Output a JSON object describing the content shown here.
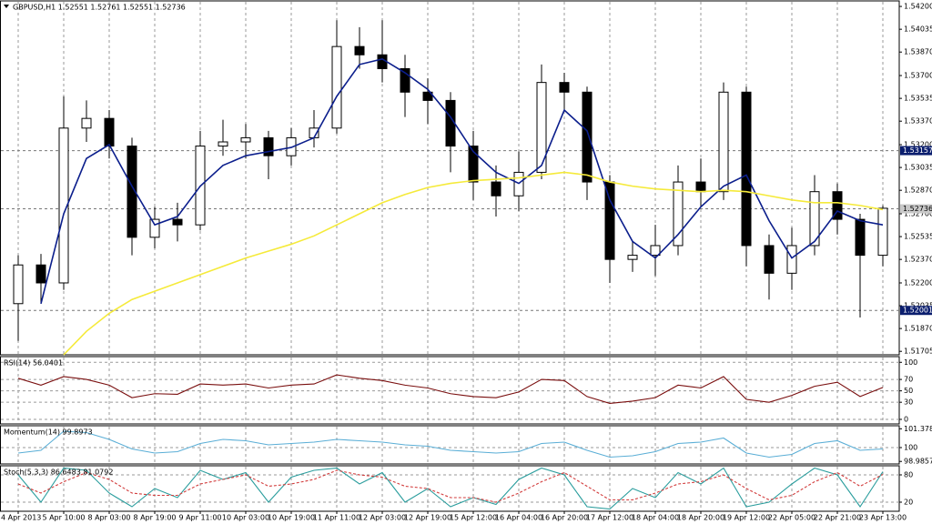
{
  "chart_data": [
    {
      "type": "candlestick",
      "title": "GBPUSD,H1  1.52551 1.52761 1.52551 1.52736",
      "categories": [
        "4 Apr 2013",
        null,
        "5 Apr 10:00",
        null,
        "8 Apr 03:00",
        null,
        "8 Apr 19:00",
        null,
        "9 Apr 11:00",
        null,
        "10 Apr 03:00",
        null,
        "10 Apr 19:00",
        null,
        "11 Apr 11:00",
        null,
        "12 Apr 03:00",
        null,
        "12 Apr 19:00",
        null,
        "15 Apr 12:00",
        null,
        "16 Apr 04:00",
        null,
        "16 Apr 20:00",
        null,
        "17 Apr 12:00",
        null,
        "18 Apr 04:00",
        null,
        "18 Apr 20:00",
        null,
        "19 Apr 12:00",
        null,
        "22 Apr 05:00",
        null,
        "22 Apr 21:00",
        null,
        "23 Apr 13:00"
      ],
      "open": [
        1.5205,
        1.5233,
        1.522,
        1.5332,
        1.5339,
        1.5319,
        1.5253,
        1.5266,
        1.5262,
        1.5319,
        1.5322,
        1.5325,
        1.5312,
        1.5325,
        1.5332,
        1.5391,
        1.5385,
        1.5375,
        1.5358,
        1.5352,
        1.5319,
        1.5293,
        1.5283,
        1.53,
        1.5365,
        1.5358,
        1.5293,
        1.5237,
        1.524,
        1.5247,
        1.5293,
        1.5286,
        1.5358,
        1.5247,
        1.5227,
        1.5247,
        1.5286,
        1.5266,
        1.524
      ],
      "high": [
        1.524,
        1.5241,
        1.5355,
        1.5352,
        1.5345,
        1.5325,
        1.5275,
        1.5278,
        1.533,
        1.5338,
        1.5335,
        1.533,
        1.5332,
        1.5345,
        1.541,
        1.5405,
        1.541,
        1.5385,
        1.5368,
        1.5358,
        1.533,
        1.5305,
        1.5315,
        1.5378,
        1.5372,
        1.5362,
        1.5298,
        1.525,
        1.5262,
        1.5305,
        1.531,
        1.5365,
        1.5362,
        1.5255,
        1.526,
        1.5298,
        1.5292,
        1.527,
        1.5276
      ],
      "low": [
        1.5178,
        1.5205,
        1.5215,
        1.5322,
        1.531,
        1.524,
        1.5245,
        1.525,
        1.5258,
        1.5312,
        1.531,
        1.5295,
        1.5305,
        1.5318,
        1.5328,
        1.5375,
        1.5365,
        1.534,
        1.5335,
        1.53,
        1.528,
        1.5268,
        1.5272,
        1.5295,
        1.5345,
        1.528,
        1.522,
        1.5228,
        1.5225,
        1.524,
        1.5275,
        1.528,
        1.5232,
        1.5208,
        1.5215,
        1.524,
        1.5255,
        1.5195,
        1.5232
      ],
      "close": [
        1.5233,
        1.522,
        1.5332,
        1.5339,
        1.5319,
        1.5253,
        1.5266,
        1.5262,
        1.5319,
        1.5322,
        1.5325,
        1.5312,
        1.5325,
        1.5332,
        1.5391,
        1.5385,
        1.5375,
        1.5358,
        1.5352,
        1.5319,
        1.5293,
        1.5283,
        1.53,
        1.5365,
        1.5358,
        1.5293,
        1.5237,
        1.524,
        1.5247,
        1.5293,
        1.5286,
        1.5358,
        1.5247,
        1.5227,
        1.5247,
        1.5286,
        1.5266,
        1.524,
        1.5274
      ],
      "color": "#000000",
      "series": [
        {
          "color": "#0b1e8c",
          "values": [
            null,
            1.5205,
            1.527,
            1.531,
            1.532,
            1.529,
            1.5262,
            1.5268,
            1.529,
            1.5305,
            1.5312,
            1.5315,
            1.5318,
            1.5325,
            1.5355,
            1.5378,
            1.5382,
            1.5372,
            1.536,
            1.534,
            1.5315,
            1.53,
            1.5292,
            1.5305,
            1.5345,
            1.533,
            1.528,
            1.525,
            1.5238,
            1.5255,
            1.5275,
            1.529,
            1.5298,
            1.5265,
            1.5238,
            1.525,
            1.5272,
            1.5265,
            1.5262
          ]
        },
        {
          "color": "#f5ea3a",
          "values": [
            null,
            null,
            1.5168,
            1.5185,
            1.5198,
            1.5208,
            1.5214,
            1.522,
            1.5226,
            1.5232,
            1.5238,
            1.5243,
            1.5248,
            1.5254,
            1.5262,
            1.527,
            1.5278,
            1.5284,
            1.5289,
            1.5292,
            1.5294,
            1.5295,
            1.5296,
            1.5298,
            1.53,
            1.5298,
            1.5293,
            1.529,
            1.5288,
            1.5287,
            1.5286,
            1.5287,
            1.5286,
            1.5283,
            1.528,
            1.5278,
            1.5278,
            1.5276,
            1.5273
          ]
        }
      ],
      "ylim": [
        1.5168,
        1.5424
      ],
      "yticks": [
        {
          "value": 1.542,
          "label": "1.54200"
        },
        {
          "value": 1.54035,
          "label": "1.54035"
        },
        {
          "value": 1.5387,
          "label": "1.53870"
        },
        {
          "value": 1.537,
          "label": "1.53700"
        },
        {
          "value": 1.53535,
          "label": "1.53535"
        },
        {
          "value": 1.5337,
          "label": "1.53370"
        },
        {
          "value": 1.532,
          "label": "1.53200"
        },
        {
          "value": 1.53035,
          "label": "1.53035"
        },
        {
          "value": 1.5287,
          "label": "1.52870"
        },
        {
          "value": 1.527,
          "label": "1.52700"
        },
        {
          "value": 1.52535,
          "label": "1.52535"
        },
        {
          "value": 1.5237,
          "label": "1.52370"
        },
        {
          "value": 1.522,
          "label": "1.52200"
        },
        {
          "value": 1.52035,
          "label": "1.52035"
        },
        {
          "value": 1.5187,
          "label": "1.51870"
        },
        {
          "value": 1.51705,
          "label": "1.51705"
        }
      ],
      "price_lines": [
        {
          "value": 1.53157,
          "label": "1.53157",
          "color": "#0b1e6e"
        },
        {
          "value": 1.52736,
          "label": "1.52736",
          "color": "#c8c8c8"
        },
        {
          "value": 1.52001,
          "label": "1.52001",
          "color": "#0b1e6e"
        }
      ],
      "grid": false
    },
    {
      "type": "line",
      "title": "RSI(14) 56.0401",
      "series": [
        {
          "color": "#7a0f0f",
          "values": [
            72,
            60,
            75,
            70,
            60,
            38,
            45,
            44,
            62,
            60,
            62,
            55,
            60,
            62,
            78,
            72,
            68,
            60,
            55,
            45,
            40,
            38,
            48,
            70,
            68,
            40,
            28,
            32,
            38,
            60,
            55,
            75,
            35,
            30,
            42,
            58,
            65,
            40,
            56
          ]
        }
      ],
      "ylim": [
        -8,
        110
      ],
      "yticks": [
        100,
        70,
        50,
        30,
        0
      ],
      "grid": true
    },
    {
      "type": "line",
      "title": "Momentum(14) 99.8973",
      "series": [
        {
          "color": "#5aaed6",
          "values": [
            99.6,
            99.8,
            101.2,
            101.1,
            100.6,
            99.9,
            99.6,
            99.7,
            100.3,
            100.6,
            100.5,
            100.2,
            100.3,
            100.4,
            100.6,
            100.5,
            100.4,
            100.2,
            100.1,
            99.8,
            99.7,
            99.6,
            99.7,
            100.3,
            100.4,
            99.8,
            99.3,
            99.4,
            99.7,
            100.3,
            100.4,
            100.7,
            99.6,
            99.3,
            99.5,
            100.3,
            100.5,
            99.8,
            99.9
          ]
        }
      ],
      "ylim": [
        98.8,
        101.6
      ],
      "yticks": [
        101.3787,
        100,
        98.9857
      ],
      "grid": true
    },
    {
      "type": "line",
      "title": "Stoch(5,3,3) 86.6483 81.0792",
      "series": [
        {
          "color": "#2a9d9d",
          "values": [
            80,
            20,
            95,
            90,
            40,
            10,
            50,
            30,
            90,
            70,
            85,
            20,
            75,
            90,
            95,
            60,
            85,
            20,
            50,
            10,
            30,
            15,
            70,
            95,
            80,
            10,
            5,
            50,
            30,
            85,
            60,
            95,
            10,
            20,
            60,
            95,
            80,
            10,
            87
          ]
        },
        {
          "color": "#d23c3c",
          "values": [
            60,
            40,
            65,
            85,
            70,
            40,
            35,
            35,
            60,
            70,
            80,
            55,
            60,
            70,
            90,
            80,
            75,
            55,
            50,
            30,
            30,
            20,
            40,
            65,
            85,
            55,
            25,
            25,
            40,
            60,
            65,
            80,
            50,
            25,
            35,
            65,
            85,
            55,
            81
          ]
        }
      ],
      "ylim": [
        0,
        100
      ],
      "yticks": [
        80,
        20
      ],
      "grid": true
    }
  ]
}
